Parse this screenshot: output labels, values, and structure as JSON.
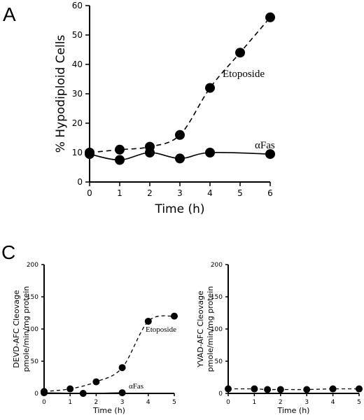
{
  "panels": {
    "a": "A",
    "c": "C"
  },
  "chart_data": [
    {
      "type": "line",
      "id": "A",
      "xlabel": "Time (h)",
      "ylabel": "% Hypodiploid Cells",
      "xlim": [
        0,
        6
      ],
      "ylim": [
        0,
        60
      ],
      "xticks": [
        0,
        1,
        2,
        3,
        4,
        5,
        6
      ],
      "yticks": [
        0,
        10,
        20,
        30,
        40,
        50,
        60
      ],
      "grid": false,
      "series": [
        {
          "name": "Etoposide",
          "style": "dashed",
          "x": [
            0,
            1,
            2,
            3,
            4,
            5,
            6
          ],
          "y": [
            10,
            11,
            12,
            16,
            32,
            44,
            56
          ]
        },
        {
          "name": "αFas",
          "style": "solid",
          "x": [
            0,
            1,
            2,
            3,
            4,
            6
          ],
          "y": [
            9.5,
            7.5,
            10,
            8,
            10,
            9.5
          ]
        }
      ]
    },
    {
      "type": "line",
      "id": "C-left",
      "xlabel": "Time (h)",
      "ylabel": [
        "DEVD-AFC Cleovage",
        "pmole/min/mg protein"
      ],
      "xlim": [
        0,
        5
      ],
      "ylim": [
        0,
        200
      ],
      "xticks": [
        0,
        1,
        2,
        3,
        4,
        5
      ],
      "yticks": [
        0,
        50,
        100,
        150,
        200
      ],
      "grid": false,
      "series": [
        {
          "name": "Etoposide",
          "style": "dashed",
          "x": [
            0,
            1,
            2,
            3,
            4,
            5
          ],
          "y": [
            3,
            7,
            18,
            40,
            112,
            120
          ]
        },
        {
          "name": "αFas",
          "style": "solid",
          "x": [
            0,
            1.5,
            3
          ],
          "y": [
            1,
            0,
            1
          ]
        }
      ]
    },
    {
      "type": "line",
      "id": "C-right",
      "xlabel": "Time (h)",
      "ylabel": [
        "YVAD-AFC Cleovage",
        "pmole/min/mg protein"
      ],
      "xlim": [
        0,
        5
      ],
      "ylim": [
        0,
        200
      ],
      "xticks": [
        0,
        1,
        2,
        3,
        4,
        5
      ],
      "yticks": [
        0,
        50,
        100,
        150,
        200
      ],
      "grid": false,
      "series": [
        {
          "name": "",
          "style": "dashed",
          "x": [
            0,
            1,
            1.5,
            2,
            3,
            4,
            5
          ],
          "y": [
            7,
            7,
            6,
            6,
            6,
            7,
            7
          ]
        }
      ]
    }
  ]
}
